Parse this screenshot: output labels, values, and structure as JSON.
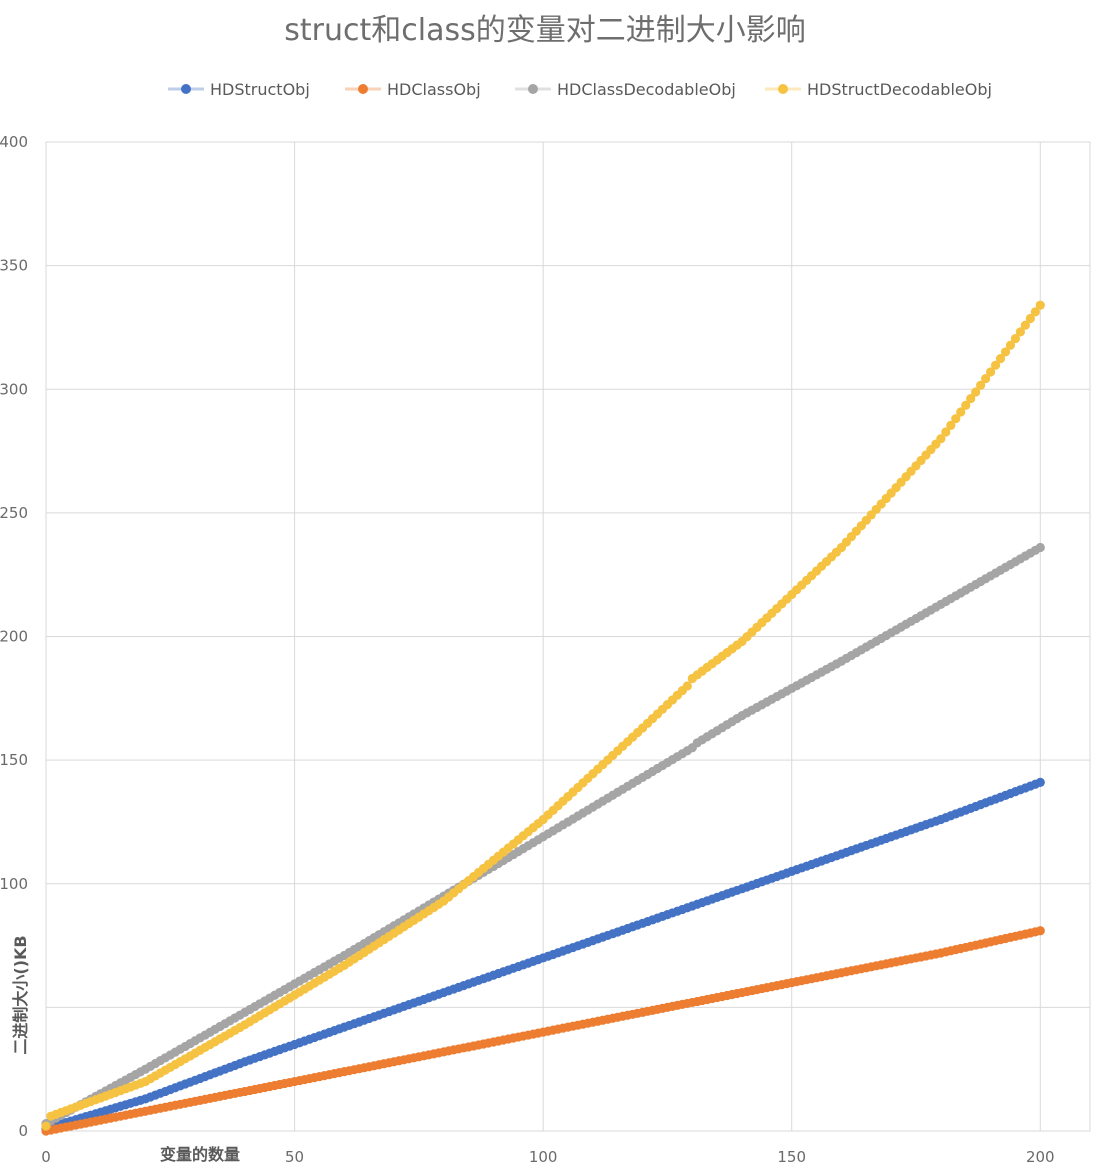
{
  "chart_data": {
    "type": "scatter",
    "title": "struct和class的变量对二进制大小影响",
    "xlabel": "变量的数量",
    "ylabel": "二进制大小()KB",
    "xlim": [
      0,
      210
    ],
    "ylim": [
      0,
      400
    ],
    "xticks": [
      "0",
      "50",
      "100",
      "150",
      "200"
    ],
    "yticks": [
      "0",
      "",
      "100",
      "150",
      "200",
      "250",
      "300",
      "350",
      "400"
    ],
    "grid": true,
    "legend_position": "top",
    "series": [
      {
        "name": "HDStructObj",
        "color": "#4472c4",
        "points": [
          [
            0,
            1
          ],
          [
            20,
            13
          ],
          [
            40,
            28
          ],
          [
            60,
            42
          ],
          [
            80,
            56
          ],
          [
            100,
            70
          ],
          [
            120,
            84
          ],
          [
            140,
            98
          ],
          [
            160,
            112
          ],
          [
            180,
            126
          ],
          [
            200,
            141
          ]
        ]
      },
      {
        "name": "HDClassObj",
        "color": "#ed7d31",
        "points": [
          [
            0,
            0
          ],
          [
            20,
            8
          ],
          [
            40,
            16
          ],
          [
            60,
            24
          ],
          [
            80,
            32
          ],
          [
            100,
            40
          ],
          [
            120,
            48
          ],
          [
            140,
            56
          ],
          [
            160,
            64
          ],
          [
            180,
            72
          ],
          [
            200,
            81
          ]
        ]
      },
      {
        "name": "HDClassDecodableObj",
        "color": "#a5a5a5",
        "points": [
          [
            0,
            3
          ],
          [
            20,
            25
          ],
          [
            40,
            48
          ],
          [
            60,
            71
          ],
          [
            80,
            95
          ],
          [
            100,
            119
          ],
          [
            120,
            143
          ],
          [
            130,
            155
          ],
          [
            131,
            157
          ],
          [
            140,
            168
          ],
          [
            160,
            190
          ],
          [
            180,
            213
          ],
          [
            200,
            236
          ]
        ]
      },
      {
        "name": "HDStructDecodableObj",
        "color": "#f5c242",
        "points": [
          [
            0,
            2
          ],
          [
            1,
            6
          ],
          [
            20,
            20
          ],
          [
            40,
            43
          ],
          [
            60,
            67
          ],
          [
            80,
            93
          ],
          [
            100,
            126
          ],
          [
            120,
            163
          ],
          [
            129,
            180
          ],
          [
            130,
            183
          ],
          [
            140,
            198
          ],
          [
            160,
            236
          ],
          [
            180,
            280
          ],
          [
            200,
            334
          ]
        ]
      }
    ]
  }
}
